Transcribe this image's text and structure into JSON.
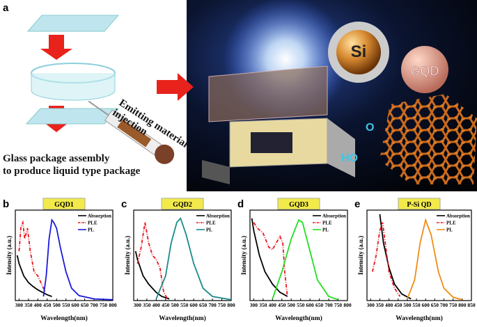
{
  "panel_a": {
    "label": "a",
    "injection_lines": [
      "Emitting material",
      "injection"
    ],
    "caption_lines": [
      "Glass package  assembly",
      "to produce liquid type package"
    ],
    "si_label": "Si",
    "gqd_label": "GQD",
    "o_label": "O",
    "ho_label": "HO"
  },
  "chart_data": [
    {
      "type": "line",
      "panel": "b",
      "title": "GQD1",
      "xlabel": "Wavelength(nm)",
      "ylabel": "Intensity (a.u.)",
      "xlim": [
        280,
        800
      ],
      "xticks": [
        300,
        350,
        400,
        450,
        500,
        550,
        600,
        650,
        700,
        750,
        800
      ],
      "ylim": [
        0,
        1.1
      ],
      "series": [
        {
          "name": "Absorption",
          "color": "#000000",
          "style": "solid",
          "x": [
            290,
            300,
            325,
            350,
            375,
            400,
            425,
            450,
            475
          ],
          "values": [
            0.55,
            0.45,
            0.3,
            0.22,
            0.17,
            0.13,
            0.1,
            0.07,
            0.05
          ]
        },
        {
          "name": "PLE",
          "color": "#e8141c",
          "style": "dashdot",
          "x": [
            300,
            310,
            320,
            330,
            345,
            360,
            380,
            400,
            420,
            440
          ],
          "values": [
            0.6,
            0.9,
            0.95,
            0.75,
            0.88,
            0.6,
            0.35,
            0.3,
            0.2,
            0.1
          ]
        },
        {
          "name": "PL",
          "color": "#1a1adc",
          "style": "solid",
          "x": [
            430,
            445,
            460,
            475,
            485,
            500,
            520,
            550,
            580,
            620,
            700,
            800
          ],
          "values": [
            0.05,
            0.3,
            0.75,
            0.98,
            0.95,
            0.88,
            0.65,
            0.35,
            0.15,
            0.06,
            0.02,
            0.01
          ]
        }
      ]
    },
    {
      "type": "line",
      "panel": "c",
      "title": "GQD2",
      "xlabel": "Wavelength(nm)",
      "ylabel": "Intensity (a.u.)",
      "xlim": [
        280,
        800
      ],
      "xticks": [
        300,
        350,
        400,
        450,
        500,
        550,
        600,
        650,
        700,
        750,
        800
      ],
      "ylim": [
        0,
        1.1
      ],
      "series": [
        {
          "name": "Absorption",
          "color": "#000000",
          "style": "solid",
          "x": [
            290,
            300,
            330,
            360,
            400,
            430,
            470
          ],
          "values": [
            0.6,
            0.5,
            0.3,
            0.2,
            0.1,
            0.05,
            0.02
          ]
        },
        {
          "name": "PLE",
          "color": "#e8141c",
          "style": "dashdot",
          "x": [
            300,
            320,
            340,
            360,
            380,
            400,
            420,
            440,
            460
          ],
          "values": [
            0.45,
            0.65,
            0.95,
            0.7,
            0.55,
            0.5,
            0.4,
            0.1,
            0.02
          ]
        },
        {
          "name": "PL",
          "color": "#1a8a8a",
          "style": "solid",
          "x": [
            400,
            450,
            480,
            510,
            530,
            560,
            600,
            650,
            700,
            800
          ],
          "values": [
            0.02,
            0.3,
            0.7,
            0.95,
            1.0,
            0.8,
            0.45,
            0.15,
            0.05,
            0.01
          ]
        }
      ]
    },
    {
      "type": "line",
      "panel": "d",
      "title": "GQD3",
      "xlabel": "Wavelength(nm)",
      "ylabel": "Intensity (a.u.)",
      "xlim": [
        280,
        800
      ],
      "xticks": [
        300,
        350,
        400,
        450,
        500,
        550,
        600,
        650,
        700,
        750,
        800
      ],
      "ylim": [
        0,
        1.1
      ],
      "series": [
        {
          "name": "Absorption",
          "color": "#000000",
          "style": "solid",
          "x": [
            290,
            300,
            330,
            360,
            400,
            440,
            480
          ],
          "values": [
            1.0,
            0.85,
            0.55,
            0.35,
            0.2,
            0.1,
            0.05
          ]
        },
        {
          "name": "PLE",
          "color": "#e8141c",
          "style": "dashdot",
          "x": [
            300,
            320,
            350,
            380,
            400,
            420,
            440,
            455,
            465,
            480
          ],
          "values": [
            0.95,
            0.88,
            0.82,
            0.65,
            0.62,
            0.7,
            0.78,
            0.7,
            0.35,
            0.05
          ]
        },
        {
          "name": "PL",
          "color": "#22dd22",
          "style": "solid",
          "x": [
            400,
            450,
            500,
            540,
            560,
            600,
            640,
            700,
            750
          ],
          "values": [
            0.02,
            0.35,
            0.75,
            0.98,
            0.95,
            0.6,
            0.25,
            0.05,
            0.01
          ]
        }
      ]
    },
    {
      "type": "line",
      "panel": "e",
      "title": "P-Si QD",
      "xlabel": "Wavelength(nm)",
      "ylabel": "Intensity (a.u.)",
      "xlim": [
        280,
        850
      ],
      "xticks": [
        300,
        350,
        400,
        450,
        500,
        550,
        600,
        650,
        700,
        750,
        800,
        850
      ],
      "ylim": [
        0,
        1.1
      ],
      "series": [
        {
          "name": "Absorption",
          "color": "#000000",
          "style": "solid",
          "x": [
            350,
            370,
            400,
            430,
            470,
            520
          ],
          "values": [
            1.05,
            0.7,
            0.4,
            0.2,
            0.08,
            0.02
          ]
        },
        {
          "name": "PLE",
          "color": "#e8141c",
          "style": "dashdot",
          "x": [
            310,
            330,
            350,
            365,
            380,
            400,
            430,
            460
          ],
          "values": [
            0.35,
            0.55,
            0.85,
            0.95,
            0.7,
            0.35,
            0.15,
            0.05
          ]
        },
        {
          "name": "PL",
          "color": "#f08c14",
          "style": "solid",
          "x": [
            500,
            540,
            570,
            600,
            630,
            670,
            700,
            750,
            800
          ],
          "values": [
            0.02,
            0.25,
            0.7,
            0.98,
            0.8,
            0.35,
            0.15,
            0.04,
            0.01
          ]
        }
      ]
    }
  ]
}
